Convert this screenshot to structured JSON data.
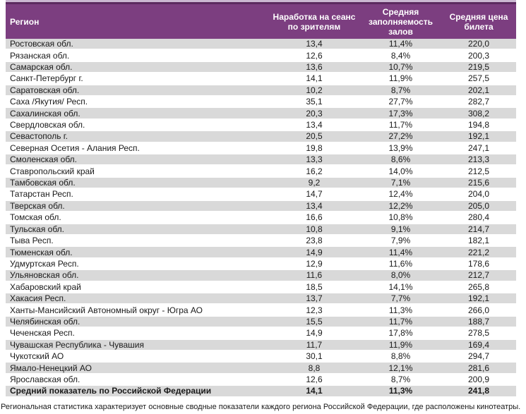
{
  "table": {
    "columns": [
      "Регион",
      "Наработка на сеанс по зрителям",
      "Средняя заполняемость залов",
      "Средняя цена билета"
    ],
    "rows": [
      [
        "Ростовская обл.",
        "13,4",
        "11,4%",
        "220,0"
      ],
      [
        "Рязанская обл.",
        "12,6",
        "8,4%",
        "200,3"
      ],
      [
        "Самарская обл.",
        "13,6",
        "10,7%",
        "219,5"
      ],
      [
        "Санкт-Петербург г.",
        "14,1",
        "11,9%",
        "257,5"
      ],
      [
        "Саратовская обл.",
        "10,2",
        "8,7%",
        "202,1"
      ],
      [
        "Саха /Якутия/ Респ.",
        "35,1",
        "27,7%",
        "282,7"
      ],
      [
        "Сахалинская обл.",
        "20,3",
        "17,3%",
        "308,2"
      ],
      [
        "Свердловская обл.",
        "13,4",
        "11,7%",
        "194,8"
      ],
      [
        "Севастополь г.",
        "20,5",
        "27,2%",
        "192,1"
      ],
      [
        "Северная Осетия - Алания Респ.",
        "19,8",
        "13,9%",
        "247,1"
      ],
      [
        "Смоленская обл.",
        "13,3",
        "8,6%",
        "213,3"
      ],
      [
        "Ставропольский край",
        "16,2",
        "14,0%",
        "212,5"
      ],
      [
        "Тамбовская обл.",
        "9,2",
        "7,1%",
        "215,6"
      ],
      [
        "Татарстан Респ.",
        "14,7",
        "12,4%",
        "204,0"
      ],
      [
        "Тверская обл.",
        "13,4",
        "12,2%",
        "205,0"
      ],
      [
        "Томская обл.",
        "16,6",
        "10,8%",
        "280,4"
      ],
      [
        "Тульская обл.",
        "10,8",
        "9,1%",
        "214,7"
      ],
      [
        "Тыва Респ.",
        "23,8",
        "7,9%",
        "182,1"
      ],
      [
        "Тюменская обл.",
        "14,9",
        "11,4%",
        "221,2"
      ],
      [
        "Удмуртская Респ.",
        "12,9",
        "11,6%",
        "178,6"
      ],
      [
        "Ульяновская обл.",
        "11,6",
        "8,0%",
        "212,7"
      ],
      [
        "Хабаровский край",
        "18,5",
        "14,1%",
        "265,8"
      ],
      [
        "Хакасия Респ.",
        "13,7",
        "7,7%",
        "192,1"
      ],
      [
        "Ханты-Мансийский Автономный округ - Югра АО",
        "12,3",
        "11,3%",
        "266,0"
      ],
      [
        "Челябинская обл.",
        "15,5",
        "11,7%",
        "188,7"
      ],
      [
        "Чеченская Респ.",
        "14,9",
        "17,8%",
        "278,5"
      ],
      [
        "Чувашская Республика - Чувашия",
        "11,7",
        "11,9%",
        "169,4"
      ],
      [
        "Чукотский АО",
        "30,1",
        "8,8%",
        "294,7"
      ],
      [
        "Ямало-Ненецкий АО",
        "8,8",
        "12,1%",
        "281,6"
      ],
      [
        "Ярославская обл.",
        "12,6",
        "8,7%",
        "200,9"
      ]
    ],
    "total_row": {
      "label": "Средний показатель по Российской Федерации",
      "values": [
        "14,1",
        "11,3%",
        "241,8"
      ]
    }
  },
  "colors": {
    "header_bg": "#7c3e80",
    "top_line_dark": "#5b2a5f",
    "top_line_light": "#cbb7d2",
    "row_stripe": "#d9d9d9"
  },
  "footnote": "Региональная статистика характеризует основные сводные показатели каждого региона Российской Федерации, где расположены кинотеатры."
}
